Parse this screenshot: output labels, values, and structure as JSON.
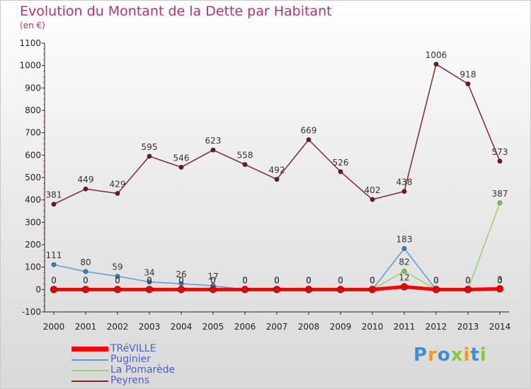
{
  "header": {
    "title": "Evolution du Montant de la Dette par Habitant",
    "subtitle": "(en €)"
  },
  "brand": {
    "letters": [
      "P",
      "r",
      "o",
      "x",
      "i",
      "t",
      "i"
    ],
    "colors": [
      "#3b8fd6",
      "#f39a1e",
      "#3b8fd6",
      "#8dc63f",
      "#f39a1e",
      "#3b8fd6",
      "#8dc63f"
    ]
  },
  "chart_data": {
    "type": "line",
    "title": "Evolution du Montant de la Dette par Habitant",
    "subtitle": "(en €)",
    "x": [
      "2000",
      "2001",
      "2002",
      "2003",
      "2004",
      "2005",
      "2006",
      "2007",
      "2008",
      "2009",
      "2010",
      "2011",
      "2012",
      "2013",
      "2014"
    ],
    "ylim": [
      -100,
      1100
    ],
    "yticks": [
      "-100",
      "0",
      "100",
      "200",
      "300",
      "400",
      "500",
      "600",
      "700",
      "800",
      "900",
      "1000",
      "1100"
    ],
    "grid": false,
    "legend_position": "bottom-left",
    "series": [
      {
        "name": "Peyrens",
        "color": "#7a2a30",
        "marker": "#6b1a22",
        "width": 1.5,
        "values": [
          381,
          449,
          429,
          595,
          546,
          623,
          558,
          492,
          669,
          526,
          402,
          438,
          1006,
          918,
          573
        ],
        "labels": [
          "381",
          "449",
          "429",
          "595",
          "546",
          "623",
          "558",
          "492",
          "669",
          "526",
          "402",
          "438",
          "1006",
          "918",
          "573"
        ]
      },
      {
        "name": "Puginier",
        "color": "#5b9bd5",
        "marker": "#3a7cc2",
        "width": 1.5,
        "values": [
          111,
          80,
          59,
          34,
          26,
          17,
          0,
          0,
          0,
          0,
          0,
          183,
          0,
          0,
          0
        ],
        "labels": [
          "111",
          "80",
          "59",
          "34",
          "26",
          "17",
          "0",
          "0",
          "0",
          "0",
          "0",
          "183",
          "0",
          "0",
          "0"
        ]
      },
      {
        "name": "La Pomarède",
        "color": "#9ad16a",
        "marker": "#7fc242",
        "width": 1.5,
        "values": [
          0,
          0,
          0,
          0,
          0,
          0,
          0,
          0,
          0,
          0,
          0,
          82,
          0,
          0,
          387
        ],
        "labels": [
          "0",
          "0",
          "0",
          "0",
          "0",
          "0",
          "0",
          "0",
          "0",
          "0",
          "0",
          "82",
          "0",
          "0",
          "387"
        ]
      },
      {
        "name": "TRéVILLE",
        "color": "#ff0000",
        "marker": "#e60000",
        "width": 5,
        "values": [
          0,
          0,
          0,
          0,
          0,
          0,
          0,
          0,
          0,
          0,
          0,
          12,
          0,
          0,
          3
        ],
        "labels": [
          "0",
          "0",
          "0",
          "0",
          "0",
          "0",
          "0",
          "0",
          "0",
          "0",
          "0",
          "12",
          "0",
          "0",
          "3"
        ]
      }
    ],
    "legend": [
      "TRéVILLE",
      "Puginier",
      "La Pomarède",
      "Peyrens"
    ]
  }
}
